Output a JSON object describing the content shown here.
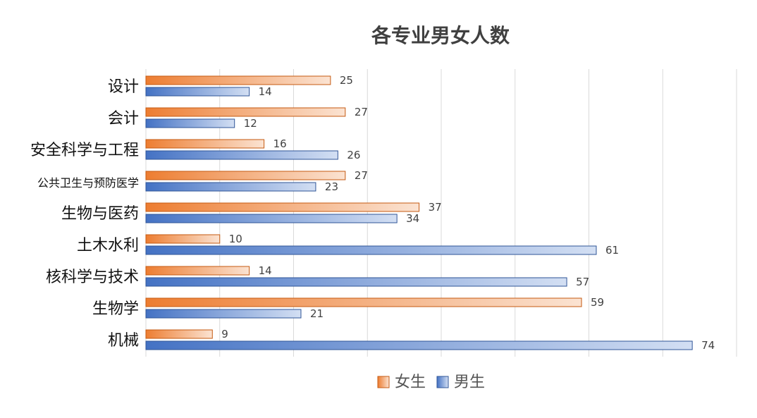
{
  "chart_data": {
    "type": "bar",
    "orientation": "horizontal",
    "title": "各专业男女人数",
    "categories": [
      "设计",
      "会计",
      "安全科学与工程",
      "公共卫生与预防医学",
      "生物与医药",
      "土木水利",
      "核科学与技术",
      "生物学",
      "机械"
    ],
    "series": [
      {
        "name": "女生",
        "values": [
          25,
          27,
          16,
          27,
          37,
          10,
          14,
          59,
          9
        ],
        "color": "#ED7D31"
      },
      {
        "name": "男生",
        "values": [
          14,
          12,
          26,
          23,
          34,
          61,
          57,
          21,
          74
        ],
        "color": "#4472C4"
      }
    ],
    "xlim": [
      0,
      80
    ],
    "grid": true,
    "data_labels": true,
    "legend_position": "bottom"
  }
}
